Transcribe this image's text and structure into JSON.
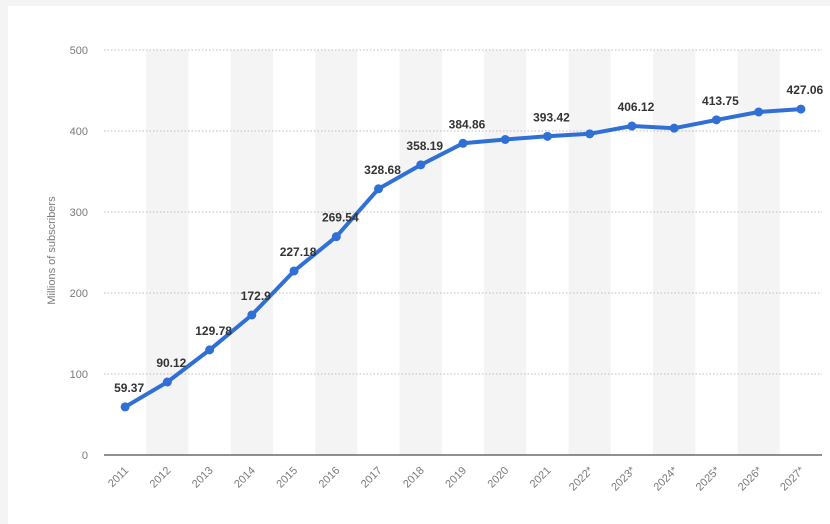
{
  "chart_data": {
    "type": "line",
    "title": "",
    "ylabel": "Millions of subscribers",
    "xlabel": "",
    "categories": [
      "2011",
      "2012",
      "2013",
      "2014",
      "2015",
      "2016",
      "2017",
      "2018",
      "2019",
      "2020",
      "2021",
      "2022*",
      "2023*",
      "2024*",
      "2025*",
      "2026*",
      "2027*"
    ],
    "series": [
      {
        "values": [
          59.37,
          90.12,
          129.78,
          172.9,
          227.18,
          269.54,
          328.68,
          358.19,
          384.86,
          389.5,
          393.42,
          396.5,
          406.12,
          403.5,
          413.75,
          423.5,
          427.06
        ],
        "labels": [
          "59.37",
          "90.12",
          "129.78",
          "172.9",
          "227.18",
          "269.54",
          "328.68",
          "358.19",
          "384.86",
          "",
          "393.42",
          "",
          "406.12",
          "",
          "413.75",
          "",
          "427.06"
        ]
      }
    ],
    "ylim": [
      0,
      500
    ],
    "yticks": [
      "0",
      "100",
      "200",
      "300",
      "400",
      "500"
    ],
    "grid": true,
    "line_color": "#2f6fd6"
  }
}
